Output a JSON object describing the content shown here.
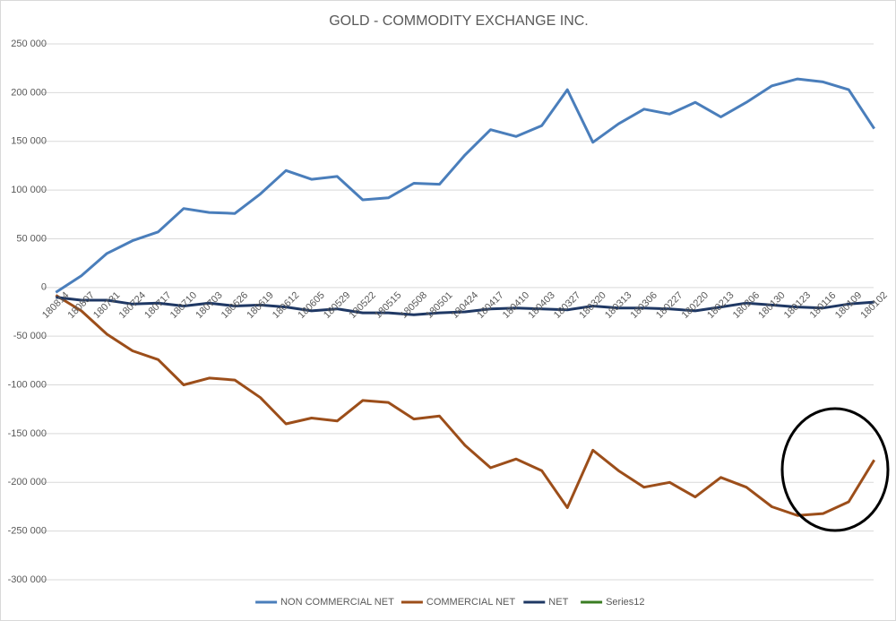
{
  "chart_data": {
    "type": "line",
    "title": "GOLD - COMMODITY EXCHANGE INC.",
    "categories": [
      "180814",
      "180807",
      "180731",
      "180724",
      "180717",
      "180710",
      "180703",
      "180626",
      "180619",
      "180612",
      "180605",
      "180529",
      "180522",
      "180515",
      "180508",
      "180501",
      "180424",
      "180417",
      "180410",
      "180403",
      "180327",
      "180320",
      "180313",
      "180306",
      "180227",
      "180220",
      "180213",
      "180206",
      "180130",
      "180123",
      "180116",
      "180109",
      "180102"
    ],
    "series": [
      {
        "name": "NON COMMERCIAL NET",
        "color": "#4a7ebb",
        "values": [
          -5000,
          12000,
          35000,
          48000,
          57000,
          81000,
          77000,
          76000,
          96000,
          120000,
          111000,
          114000,
          90000,
          92000,
          107000,
          106000,
          136000,
          162000,
          155000,
          166000,
          203000,
          149000,
          168000,
          183000,
          178000,
          190000,
          175000,
          190000,
          207000,
          214000,
          211000,
          203000,
          163000
        ]
      },
      {
        "name": "COMMERCIAL NET",
        "color": "#9c4e1a",
        "values": [
          -8000,
          -24000,
          -48000,
          -65000,
          -74000,
          -100000,
          -93000,
          -95000,
          -113000,
          -140000,
          -134000,
          -137000,
          -116000,
          -118000,
          -135000,
          -132000,
          -162000,
          -185000,
          -176000,
          -188000,
          -226000,
          -167000,
          -188000,
          -205000,
          -200000,
          -215000,
          -195000,
          -205000,
          -225000,
          -234000,
          -232000,
          -220000,
          -177000
        ]
      },
      {
        "name": "NET",
        "color": "#1f3864",
        "values": [
          -10000,
          -13000,
          -13000,
          -17000,
          -16000,
          -19000,
          -16000,
          -19000,
          -18000,
          -20000,
          -24000,
          -22000,
          -26000,
          -26000,
          -28000,
          -26000,
          -25000,
          -22000,
          -21000,
          -22000,
          -23000,
          -19000,
          -21000,
          -21000,
          -22000,
          -24000,
          -20000,
          -16000,
          -18000,
          -20000,
          -21000,
          -17000,
          -15000
        ]
      },
      {
        "name": "Series12",
        "color": "#3a7d22",
        "values": [
          null,
          null,
          null,
          null,
          null,
          null,
          null,
          null,
          null,
          null,
          null,
          null,
          null,
          null,
          null,
          null,
          null,
          null,
          null,
          null,
          null,
          null,
          null,
          null,
          null,
          null,
          null,
          null,
          null,
          null,
          null,
          null,
          null
        ]
      }
    ],
    "ylim": [
      -300000,
      250000
    ],
    "yticks": [
      {
        "value": -300000,
        "label": "-300 000"
      },
      {
        "value": -250000,
        "label": "-250 000"
      },
      {
        "value": -200000,
        "label": "-200 000"
      },
      {
        "value": -150000,
        "label": "-150 000"
      },
      {
        "value": -100000,
        "label": "-100 000"
      },
      {
        "value": -50000,
        "label": "-50 000"
      },
      0,
      {
        "value": 50000,
        "label": "50 000"
      },
      {
        "value": 100000,
        "label": "100 000"
      },
      {
        "value": 150000,
        "label": "150 000"
      },
      {
        "value": 200000,
        "label": "200 000"
      },
      {
        "value": 250000,
        "label": "250 000"
      }
    ],
    "grid": true,
    "legend": "bottom"
  }
}
